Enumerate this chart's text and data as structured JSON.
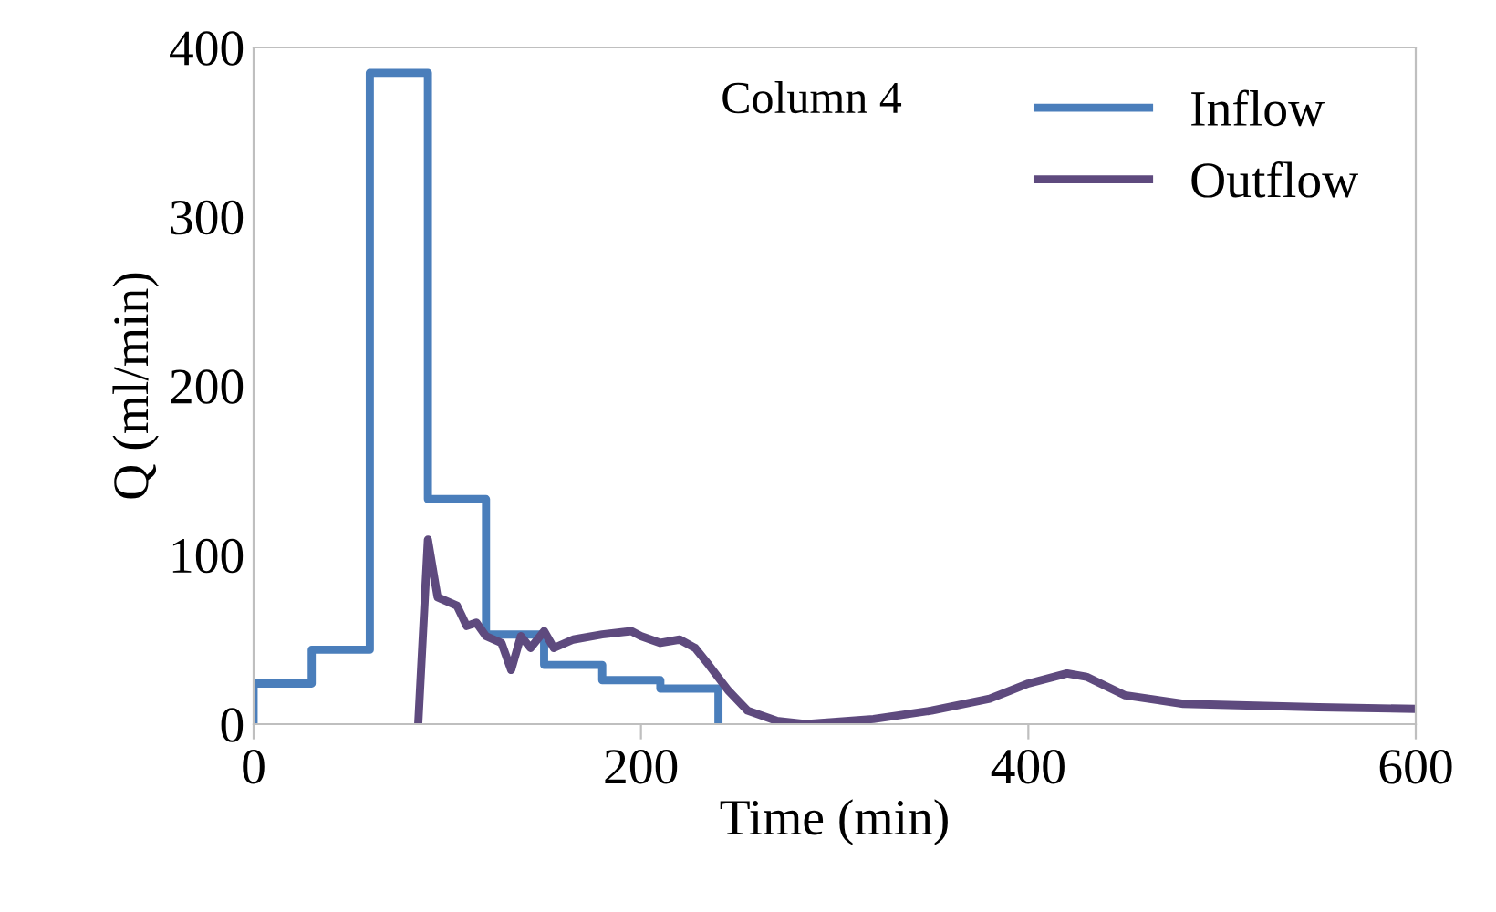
{
  "chart_data": {
    "type": "line",
    "title": "Column 4",
    "xlabel": "Time (min)",
    "ylabel": "Q (ml/min)",
    "xlim": [
      0,
      600
    ],
    "xticks": [
      0,
      200,
      400,
      600
    ],
    "ylim": [
      0,
      400
    ],
    "yticks": [
      0,
      100,
      200,
      300,
      400
    ],
    "grid": false,
    "legend": "right",
    "marker": "none",
    "line_style": "solid",
    "series": [
      {
        "name": "Inflow",
        "color": "#4a7ebb",
        "x": [
          0,
          0,
          30,
          30,
          60,
          60,
          90,
          90,
          120,
          120,
          150,
          150,
          180,
          180,
          210,
          210,
          240,
          240
        ],
        "values": [
          0,
          24,
          24,
          44,
          44,
          385,
          385,
          133,
          133,
          53,
          53,
          35,
          35,
          26,
          26,
          21,
          21,
          0
        ]
      },
      {
        "name": "Outflow",
        "color": "#5e4a7e",
        "x": [
          85,
          90,
          95,
          105,
          110,
          115,
          120,
          128,
          133,
          138,
          143,
          150,
          155,
          165,
          180,
          195,
          200,
          210,
          220,
          228,
          235,
          245,
          255,
          270,
          285,
          320,
          350,
          380,
          400,
          420,
          430,
          450,
          480,
          550,
          600
        ],
        "values": [
          0,
          109,
          75,
          70,
          58,
          60,
          52,
          48,
          32,
          52,
          45,
          55,
          45,
          50,
          53,
          55,
          52,
          48,
          50,
          45,
          35,
          20,
          8,
          2,
          0,
          3,
          8,
          15,
          24,
          30,
          28,
          17,
          12,
          10,
          9
        ]
      }
    ]
  }
}
